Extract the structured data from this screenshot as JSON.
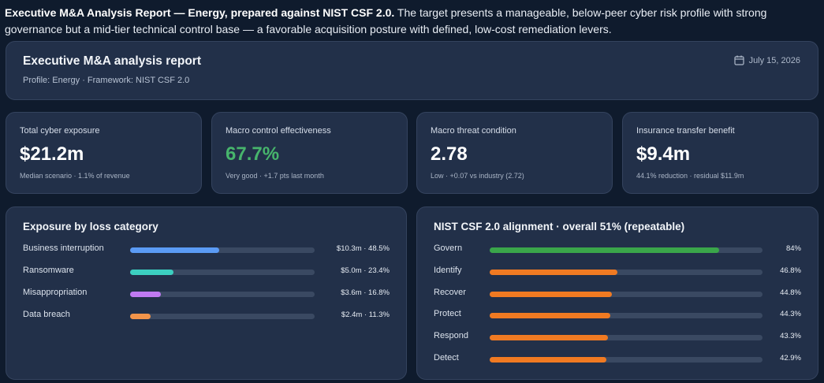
{
  "intro": {
    "bold": "Executive M&A Analysis Report — Energy, prepared against NIST CSF 2.0.",
    "text": " The target presents a manageable, below-peer cyber risk profile with strong governance but a mid-tier technical control base — a favorable acquisition posture with defined, low-cost remediation levers."
  },
  "header": {
    "title": "Executive M&A analysis report",
    "subtitle": "Profile: Energy · Framework: NIST CSF 2.0",
    "date": "July 15, 2026",
    "date_icon": "calendar-icon"
  },
  "kpis": [
    {
      "label": "Total cyber exposure",
      "value": "$21.2m",
      "note": "Median scenario · 1.1% of revenue"
    },
    {
      "label": "Macro control effectiveness",
      "value": "67.7%",
      "note": "Very good · +1.7 pts last month"
    },
    {
      "label": "Macro threat condition",
      "value": "2.78",
      "note": "Low · +0.07 vs industry (2.72)"
    },
    {
      "label": "Insurance transfer benefit",
      "value": "$9.4m",
      "note": "44.1% reduction · residual $11.9m"
    }
  ],
  "colors": {
    "good": "#47b56c",
    "track": "#3a4962",
    "govern": "#3aa64a",
    "nist_other": "#f07a22"
  },
  "exposure": {
    "title": "Exposure by loss category",
    "items": [
      {
        "label": "Business interruption",
        "value": "$10.3m · 48.5%",
        "share": 0.485,
        "color": "#5b9bf5"
      },
      {
        "label": "Ransomware",
        "value": "$5.0m · 23.4%",
        "share": 0.234,
        "color": "#3ccfc0"
      },
      {
        "label": "Misappropriation",
        "value": "$3.6m · 16.8%",
        "share": 0.168,
        "color": "#c07af2"
      },
      {
        "label": "Data breach",
        "value": "$2.4m · 11.3%",
        "share": 0.113,
        "color": "#f2944a"
      }
    ]
  },
  "nist": {
    "title": "NIST CSF 2.0 alignment · overall 51% (repeatable)",
    "items": [
      {
        "label": "Govern",
        "value": "84%",
        "share": 0.84,
        "color": "#3aa64a"
      },
      {
        "label": "Identify",
        "value": "46.8%",
        "share": 0.468,
        "color": "#f07a22"
      },
      {
        "label": "Recover",
        "value": "44.8%",
        "share": 0.448,
        "color": "#f07a22"
      },
      {
        "label": "Protect",
        "value": "44.3%",
        "share": 0.443,
        "color": "#f07a22"
      },
      {
        "label": "Respond",
        "value": "43.3%",
        "share": 0.433,
        "color": "#f07a22"
      },
      {
        "label": "Detect",
        "value": "42.9%",
        "share": 0.429,
        "color": "#f07a22"
      }
    ]
  }
}
